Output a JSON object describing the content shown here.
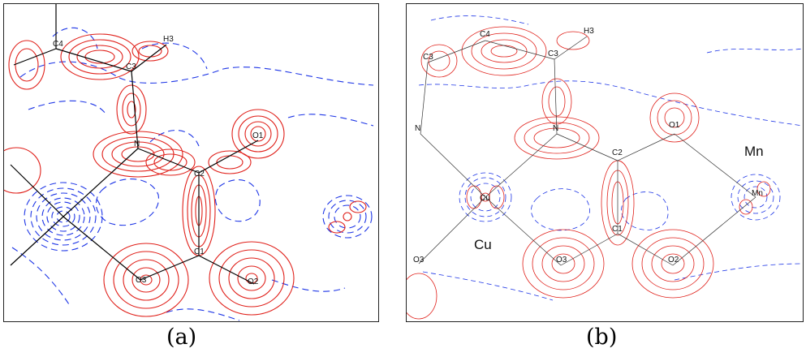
{
  "figure": {
    "caption_a": "(a)",
    "caption_b": "(b)"
  },
  "panel_a": {
    "atoms": {
      "c4": "C4",
      "h3": "H3",
      "c3": "C3",
      "n": "N",
      "o1": "O1",
      "c2": "C2",
      "c1": "C1",
      "o3": "O3",
      "o2": "O2"
    }
  },
  "panel_b": {
    "atoms": {
      "c4": "C4",
      "h3": "H3",
      "c3_left": "C3",
      "c3": "C3",
      "n_left": "N",
      "n": "N",
      "o1": "O1",
      "c2": "C2",
      "c1": "C1",
      "cu_atom": "Cu",
      "mn_atom": "Mn",
      "o3_left": "O3",
      "o3": "O3",
      "o2": "O2"
    },
    "metal_cu": "Cu",
    "metal_mn": "Mn"
  },
  "colors": {
    "positive_contour": "#e0201a",
    "negative_contour": "#1d35e6",
    "frame": "#222222"
  }
}
